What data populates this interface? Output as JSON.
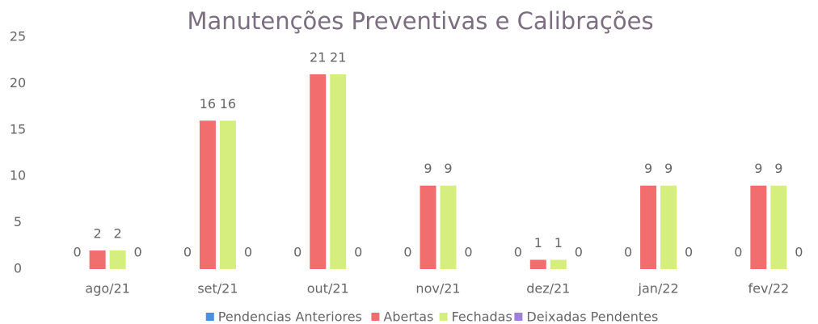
{
  "chart_data": {
    "type": "bar",
    "title": "Manutenções Preventivas e Calibrações",
    "categories": [
      "ago/21",
      "set/21",
      "out/21",
      "nov/21",
      "dez/21",
      "jan/22",
      "fev/22"
    ],
    "series": [
      {
        "name": "Pendencias Anteriores",
        "color": "#4a90e2",
        "values": [
          0,
          0,
          0,
          0,
          0,
          0,
          0
        ]
      },
      {
        "name": "Abertas",
        "color": "#f26d6d",
        "values": [
          2,
          16,
          21,
          9,
          1,
          9,
          9
        ]
      },
      {
        "name": "Fechadas",
        "color": "#d6ee7e",
        "values": [
          2,
          16,
          21,
          9,
          1,
          9,
          9
        ]
      },
      {
        "name": "Deixadas Pendentes",
        "color": "#a07fd8",
        "values": [
          0,
          0,
          0,
          0,
          0,
          0,
          0
        ]
      }
    ],
    "ylim": [
      0,
      25
    ],
    "yticks": [
      0,
      5,
      10,
      15,
      20,
      25
    ],
    "grid": false,
    "legend": "bottom"
  }
}
